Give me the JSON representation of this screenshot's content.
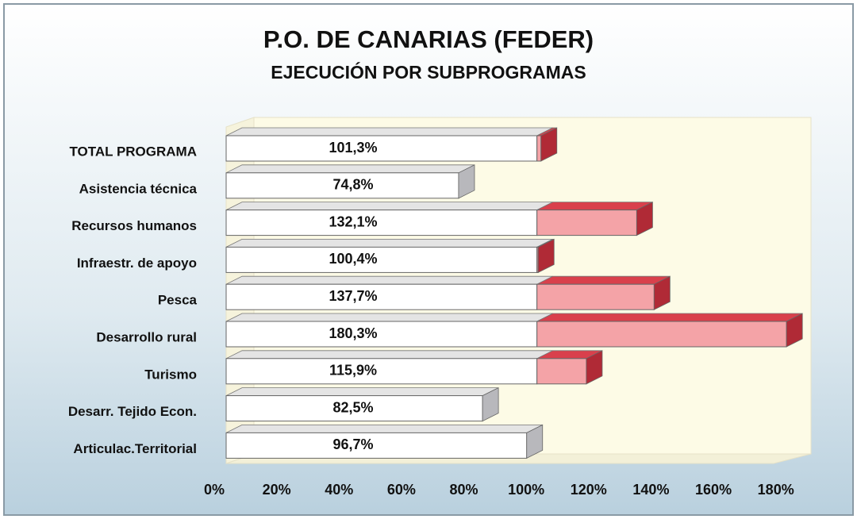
{
  "chart_data": {
    "type": "bar3d",
    "orientation": "horizontal",
    "title": "P.O. DE CANARIAS (FEDER)",
    "subtitle": "EJECUCIÓN POR SUBPROGRAMAS",
    "categories": [
      "TOTAL PROGRAMA",
      "Asistencia técnica",
      "Recursos humanos",
      "Infraestr. de apoyo",
      "Pesca",
      "Desarrollo rural",
      "Turismo",
      "Desarr. Tejido Econ.",
      "Articulac.Territorial"
    ],
    "values": [
      101.3,
      74.8,
      132.1,
      100.4,
      137.7,
      180.3,
      115.9,
      82.5,
      96.7
    ],
    "value_labels": [
      "101,3%",
      "74,8%",
      "132,1%",
      "100,4%",
      "137,7%",
      "180,3%",
      "115,9%",
      "82,5%",
      "96,7%"
    ],
    "split_at": 100,
    "colors": {
      "within": "#ffffff",
      "above": "#f4a3a7"
    },
    "xlim": [
      0,
      180
    ],
    "xticks": [
      {
        "value": 0,
        "label": "0%"
      },
      {
        "value": 20,
        "label": "20%"
      },
      {
        "value": 40,
        "label": "40%"
      },
      {
        "value": 60,
        "label": "60%"
      },
      {
        "value": 80,
        "label": "80%"
      },
      {
        "value": 100,
        "label": "100%"
      },
      {
        "value": 120,
        "label": "120%"
      },
      {
        "value": 140,
        "label": "140%"
      },
      {
        "value": 160,
        "label": "160%"
      },
      {
        "value": 180,
        "label": "180%"
      }
    ]
  }
}
